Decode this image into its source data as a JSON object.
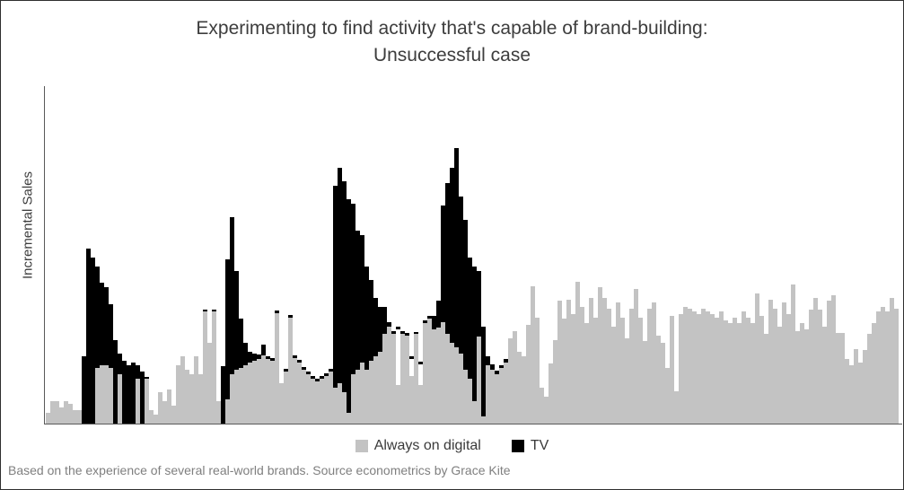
{
  "title": {
    "line1": "Experimenting to find activity that's capable of brand-building:",
    "line2": "Unsuccessful case"
  },
  "y_axis_label": "Incremental Sales",
  "footnote": "Based on the experience of several real-world brands. Source econometrics by Grace Kite",
  "legend": [
    {
      "label": "Always on digital",
      "color": "#c3c3c3"
    },
    {
      "label": "TV",
      "color": "#000000"
    }
  ],
  "colors": {
    "digital_bar": "#c3c3c3",
    "tv_bar": "#000000",
    "axis": "#595959",
    "title_text": "#3d3d3d",
    "footnote_text": "#7f7f7f",
    "background": "#ffffff"
  },
  "chart_data": {
    "type": "bar",
    "stacked": true,
    "title": "Experimenting to find activity that's capable of brand-building: Unsuccessful case",
    "xlabel": "",
    "ylabel": "Incremental Sales",
    "x_description": "about 190 consecutive weekly periods (x axis unlabeled)",
    "units": "relative incremental sales (y axis has no tick labels; values are pixel-estimated relative heights)",
    "ylim": [
      0,
      376
    ],
    "grid": false,
    "legend_position": "bottom-center",
    "notes": "Four TV burst periods (weeks ~9-22, ~39-49, ~65-78, ~87-103) stacked in black on top of continuous gray always-on digital; after the final burst only digital remains at a higher steady level. Some burst weeks have zero digital (black reaches baseline). Thin black caps mark small TV amounts between bursts; a few columns have a white gap below a black cap.",
    "series": [
      {
        "name": "Always on digital",
        "color": "#c3c3c3",
        "values": [
          12,
          25,
          25,
          18,
          25,
          22,
          15,
          15,
          0,
          0,
          0,
          62,
          65,
          65,
          62,
          0,
          55,
          0,
          0,
          0,
          50,
          0,
          50,
          15,
          10,
          35,
          25,
          38,
          20,
          65,
          75,
          60,
          55,
          75,
          55,
          125,
          90,
          125,
          25,
          0,
          27,
          55,
          60,
          62,
          65,
          68,
          70,
          72,
          76,
          72,
          70,
          123,
          45,
          58,
          118,
          73,
          68,
          60,
          55,
          50,
          47,
          50,
          53,
          58,
          40,
          45,
          35,
          12,
          55,
          60,
          68,
          60,
          70,
          75,
          80,
          100,
          108,
          100,
          43,
          100,
          98,
          53,
          100,
          43,
          112,
          117,
          105,
          107,
          113,
          100,
          90,
          85,
          78,
          60,
          50,
          25,
          97,
          8,
          65,
          60,
          55,
          62,
          68,
          95,
          103,
          80,
          75,
          110,
          153,
          118,
          40,
          30,
          67,
          93,
          137,
          117,
          138,
          122,
          158,
          130,
          112,
          140,
          118,
          152,
          140,
          128,
          108,
          135,
          118,
          95,
          128,
          150,
          118,
          92,
          128,
          135,
          98,
          90,
          62,
          120,
          36,
          122,
          130,
          128,
          125,
          122,
          128,
          125,
          122,
          118,
          125,
          115,
          112,
          118,
          112,
          125,
          118,
          112,
          145,
          120,
          100,
          138,
          128,
          108,
          135,
          122,
          155,
          103,
          112,
          105,
          127,
          140,
          127,
          108,
          137,
          143,
          101,
          101,
          72,
          65,
          83,
          68,
          82,
          100,
          112,
          125,
          130,
          125,
          140,
          128
        ]
      },
      {
        "name": "TV",
        "color": "#000000",
        "values": [
          0,
          0,
          0,
          0,
          0,
          0,
          0,
          0,
          75,
          195,
          185,
          113,
          92,
          87,
          71,
          93,
          23,
          70,
          65,
          68,
          15,
          58,
          2,
          0,
          0,
          0,
          0,
          0,
          0,
          0,
          0,
          0,
          0,
          0,
          0,
          2,
          0,
          2,
          0,
          64,
          156,
          175,
          110,
          55,
          25,
          12,
          8,
          5,
          12,
          3,
          3,
          3,
          0,
          3,
          3,
          3,
          3,
          3,
          3,
          3,
          3,
          3,
          3,
          3,
          225,
          240,
          235,
          238,
          190,
          155,
          142,
          115,
          90,
          65,
          50,
          30,
          5,
          3,
          3,
          3,
          3,
          3,
          2,
          3,
          3,
          3,
          15,
          30,
          130,
          168,
          195,
          222,
          175,
          167,
          135,
          150,
          73,
          100,
          10,
          6,
          4,
          3,
          4,
          0,
          0,
          0,
          0,
          0,
          0,
          0,
          0,
          0,
          0,
          0,
          0,
          0,
          0,
          0,
          0,
          0,
          0,
          0,
          0,
          0,
          0,
          0,
          0,
          0,
          0,
          0,
          0,
          0,
          0,
          0,
          0,
          0,
          0,
          0,
          0,
          0,
          0,
          0,
          0,
          0,
          0,
          0,
          0,
          0,
          0,
          0,
          0,
          0,
          0,
          0,
          0,
          0,
          0,
          0,
          0,
          0,
          0,
          0,
          0,
          0,
          0,
          0,
          0,
          0,
          0,
          0,
          0,
          0,
          0,
          0,
          0,
          0,
          0,
          0,
          0,
          0,
          0,
          0,
          0,
          0,
          0,
          0,
          0,
          0,
          0,
          0
        ]
      }
    ],
    "gap_below_tv_cap": [
      0,
      0,
      0,
      0,
      0,
      0,
      0,
      0,
      0,
      0,
      0,
      0,
      0,
      0,
      0,
      0,
      0,
      0,
      0,
      0,
      0,
      0,
      0,
      0,
      0,
      0,
      0,
      0,
      0,
      0,
      0,
      0,
      0,
      0,
      0,
      0,
      0,
      0,
      0,
      0,
      0,
      0,
      0,
      0,
      0,
      0,
      0,
      0,
      0,
      0,
      0,
      0,
      0,
      0,
      0,
      0,
      0,
      0,
      0,
      0,
      0,
      0,
      0,
      0,
      0,
      0,
      0,
      0,
      0,
      0,
      0,
      0,
      0,
      0,
      0,
      0,
      0,
      0,
      62,
      0,
      0,
      19,
      0,
      23,
      0,
      0,
      0,
      0,
      0,
      0,
      0,
      0,
      0,
      0,
      0,
      0,
      0,
      0,
      0,
      0,
      0,
      0,
      0,
      0,
      0,
      0,
      0,
      0,
      0,
      0,
      0,
      0,
      0,
      0,
      0,
      0,
      0,
      0,
      0,
      0,
      0,
      0,
      0,
      0,
      0,
      0,
      0,
      0,
      0,
      0,
      0,
      0,
      0,
      0,
      0,
      0,
      0,
      0,
      0,
      0,
      0,
      0,
      0,
      0,
      0,
      0,
      0,
      0,
      0,
      0,
      0,
      0,
      0,
      0,
      0,
      0,
      0,
      0,
      0,
      0,
      0,
      0,
      0,
      0,
      0,
      0,
      0,
      0,
      0,
      0,
      0,
      0,
      0,
      0,
      0,
      0,
      0,
      0,
      0,
      0,
      0,
      0,
      0,
      0,
      0,
      0,
      0,
      0,
      0,
      0
    ]
  }
}
